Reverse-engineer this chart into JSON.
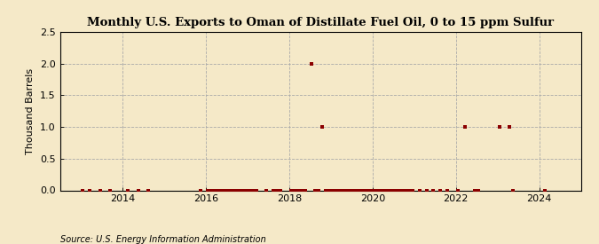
{
  "title": "Monthly U.S. Exports to Oman of Distillate Fuel Oil, 0 to 15 ppm Sulfur",
  "ylabel": "Thousand Barrels",
  "source": "Source: U.S. Energy Information Administration",
  "background_color": "#f5e9c8",
  "plot_bg_color": "#f5e9c8",
  "marker_color": "#8b0000",
  "ylim": [
    0,
    2.5
  ],
  "yticks": [
    0.0,
    0.5,
    1.0,
    1.5,
    2.0,
    2.5
  ],
  "xlim_start": 2012.5,
  "xlim_end": 2025.0,
  "xticks": [
    2014,
    2016,
    2018,
    2020,
    2022,
    2024
  ],
  "data_points": [
    {
      "year": 2013,
      "month": 1,
      "value": 0.0
    },
    {
      "year": 2013,
      "month": 3,
      "value": 0.0
    },
    {
      "year": 2013,
      "month": 6,
      "value": 0.0
    },
    {
      "year": 2013,
      "month": 9,
      "value": 0.0
    },
    {
      "year": 2014,
      "month": 2,
      "value": 0.0
    },
    {
      "year": 2014,
      "month": 5,
      "value": 0.0
    },
    {
      "year": 2014,
      "month": 8,
      "value": 0.0
    },
    {
      "year": 2015,
      "month": 11,
      "value": 0.0
    },
    {
      "year": 2016,
      "month": 1,
      "value": 0.0
    },
    {
      "year": 2016,
      "month": 2,
      "value": 0.0
    },
    {
      "year": 2016,
      "month": 3,
      "value": 0.0
    },
    {
      "year": 2016,
      "month": 4,
      "value": 0.0
    },
    {
      "year": 2016,
      "month": 5,
      "value": 0.0
    },
    {
      "year": 2016,
      "month": 6,
      "value": 0.0
    },
    {
      "year": 2016,
      "month": 7,
      "value": 0.0
    },
    {
      "year": 2016,
      "month": 8,
      "value": 0.0
    },
    {
      "year": 2016,
      "month": 9,
      "value": 0.0
    },
    {
      "year": 2016,
      "month": 10,
      "value": 0.0
    },
    {
      "year": 2016,
      "month": 11,
      "value": 0.0
    },
    {
      "year": 2016,
      "month": 12,
      "value": 0.0
    },
    {
      "year": 2017,
      "month": 1,
      "value": 0.0
    },
    {
      "year": 2017,
      "month": 2,
      "value": 0.0
    },
    {
      "year": 2017,
      "month": 3,
      "value": 0.0
    },
    {
      "year": 2017,
      "month": 6,
      "value": 0.0
    },
    {
      "year": 2017,
      "month": 8,
      "value": 0.0
    },
    {
      "year": 2017,
      "month": 9,
      "value": 0.0
    },
    {
      "year": 2017,
      "month": 10,
      "value": 0.0
    },
    {
      "year": 2018,
      "month": 1,
      "value": 0.0
    },
    {
      "year": 2018,
      "month": 2,
      "value": 0.0
    },
    {
      "year": 2018,
      "month": 3,
      "value": 0.0
    },
    {
      "year": 2018,
      "month": 4,
      "value": 0.0
    },
    {
      "year": 2018,
      "month": 5,
      "value": 0.0
    },
    {
      "year": 2018,
      "month": 7,
      "value": 2.0
    },
    {
      "year": 2018,
      "month": 8,
      "value": 0.0
    },
    {
      "year": 2018,
      "month": 9,
      "value": 0.0
    },
    {
      "year": 2018,
      "month": 10,
      "value": 1.0
    },
    {
      "year": 2018,
      "month": 11,
      "value": 0.0
    },
    {
      "year": 2018,
      "month": 12,
      "value": 0.0
    },
    {
      "year": 2019,
      "month": 1,
      "value": 0.0
    },
    {
      "year": 2019,
      "month": 2,
      "value": 0.0
    },
    {
      "year": 2019,
      "month": 3,
      "value": 0.0
    },
    {
      "year": 2019,
      "month": 4,
      "value": 0.0
    },
    {
      "year": 2019,
      "month": 5,
      "value": 0.0
    },
    {
      "year": 2019,
      "month": 6,
      "value": 0.0
    },
    {
      "year": 2019,
      "month": 7,
      "value": 0.0
    },
    {
      "year": 2019,
      "month": 8,
      "value": 0.0
    },
    {
      "year": 2019,
      "month": 9,
      "value": 0.0
    },
    {
      "year": 2019,
      "month": 10,
      "value": 0.0
    },
    {
      "year": 2019,
      "month": 11,
      "value": 0.0
    },
    {
      "year": 2019,
      "month": 12,
      "value": 0.0
    },
    {
      "year": 2020,
      "month": 1,
      "value": 0.0
    },
    {
      "year": 2020,
      "month": 2,
      "value": 0.0
    },
    {
      "year": 2020,
      "month": 3,
      "value": 0.0
    },
    {
      "year": 2020,
      "month": 4,
      "value": 0.0
    },
    {
      "year": 2020,
      "month": 5,
      "value": 0.0
    },
    {
      "year": 2020,
      "month": 6,
      "value": 0.0
    },
    {
      "year": 2020,
      "month": 7,
      "value": 0.0
    },
    {
      "year": 2020,
      "month": 8,
      "value": 0.0
    },
    {
      "year": 2020,
      "month": 9,
      "value": 0.0
    },
    {
      "year": 2020,
      "month": 10,
      "value": 0.0
    },
    {
      "year": 2020,
      "month": 11,
      "value": 0.0
    },
    {
      "year": 2020,
      "month": 12,
      "value": 0.0
    },
    {
      "year": 2021,
      "month": 2,
      "value": 0.0
    },
    {
      "year": 2021,
      "month": 4,
      "value": 0.0
    },
    {
      "year": 2021,
      "month": 6,
      "value": 0.0
    },
    {
      "year": 2021,
      "month": 8,
      "value": 0.0
    },
    {
      "year": 2021,
      "month": 10,
      "value": 0.0
    },
    {
      "year": 2022,
      "month": 1,
      "value": 0.0
    },
    {
      "year": 2022,
      "month": 3,
      "value": 1.0
    },
    {
      "year": 2022,
      "month": 6,
      "value": 0.0
    },
    {
      "year": 2022,
      "month": 7,
      "value": 0.0
    },
    {
      "year": 2023,
      "month": 1,
      "value": 1.0
    },
    {
      "year": 2023,
      "month": 4,
      "value": 1.0
    },
    {
      "year": 2023,
      "month": 5,
      "value": 0.0
    },
    {
      "year": 2024,
      "month": 2,
      "value": 0.0
    }
  ],
  "title_fontsize": 9.5,
  "label_fontsize": 8,
  "tick_fontsize": 8,
  "source_fontsize": 7
}
